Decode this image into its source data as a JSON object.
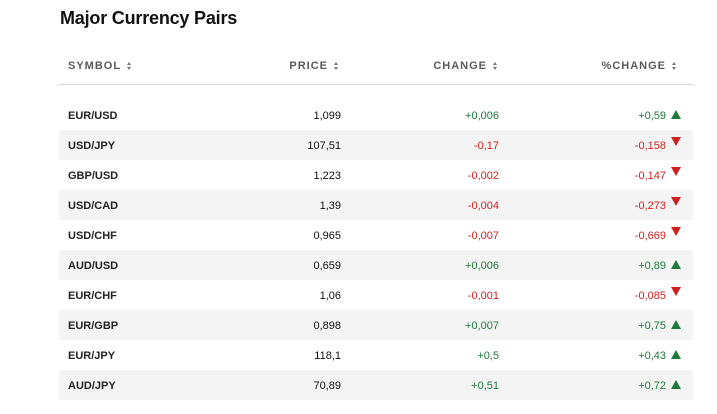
{
  "title": "Major Currency Pairs",
  "columns": {
    "symbol": "SYMBOL",
    "price": "PRICE",
    "change": "CHANGE",
    "pct_change": "%CHANGE"
  },
  "colors": {
    "positive": "#1e7a3c",
    "negative": "#d01f1f"
  },
  "rows": [
    {
      "symbol": "EUR/USD",
      "price": "1,099",
      "change": "+0,006",
      "pct": "+0,59",
      "direction": "up"
    },
    {
      "symbol": "USD/JPY",
      "price": "107,51",
      "change": "-0,17",
      "pct": "-0,158",
      "direction": "down"
    },
    {
      "symbol": "GBP/USD",
      "price": "1,223",
      "change": "-0,002",
      "pct": "-0,147",
      "direction": "down"
    },
    {
      "symbol": "USD/CAD",
      "price": "1,39",
      "change": "-0,004",
      "pct": "-0,273",
      "direction": "down"
    },
    {
      "symbol": "USD/CHF",
      "price": "0,965",
      "change": "-0,007",
      "pct": "-0,669",
      "direction": "down"
    },
    {
      "symbol": "AUD/USD",
      "price": "0,659",
      "change": "+0,006",
      "pct": "+0,89",
      "direction": "up"
    },
    {
      "symbol": "EUR/CHF",
      "price": "1,06",
      "change": "-0,001",
      "pct": "-0,085",
      "direction": "down"
    },
    {
      "symbol": "EUR/GBP",
      "price": "0,898",
      "change": "+0,007",
      "pct": "+0,75",
      "direction": "up"
    },
    {
      "symbol": "EUR/JPY",
      "price": "118,1",
      "change": "+0,5",
      "pct": "+0,43",
      "direction": "up"
    },
    {
      "symbol": "AUD/JPY",
      "price": "70,89",
      "change": "+0,51",
      "pct": "+0,72",
      "direction": "up"
    }
  ]
}
